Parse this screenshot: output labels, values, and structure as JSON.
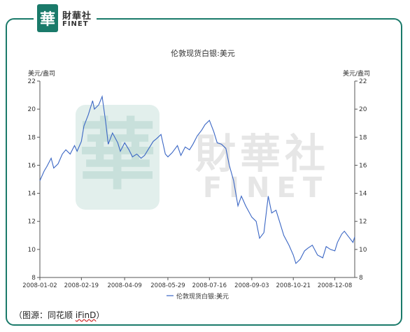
{
  "brand": {
    "logo_char": "華",
    "name_cn": "財華社",
    "name_en": "FINET"
  },
  "watermark": {
    "logo_char": "華",
    "name_cn": "財華社",
    "name_en": "FINET"
  },
  "source": {
    "prefix": "（图源：同花顺 ",
    "highlight": "iFinD",
    "suffix": "）"
  },
  "colors": {
    "line": "#3a66c4",
    "frame": "#1a7a6a",
    "watermark": "#cfe6e2"
  },
  "chart_data": {
    "type": "line",
    "title": "伦敦现货白银:美元",
    "ylabel_left": "美元/盎司",
    "ylabel_right": "美元/盎司",
    "ylim": [
      8,
      22
    ],
    "yticks": [
      8,
      10,
      12,
      14,
      16,
      18,
      20,
      22
    ],
    "xlim": [
      "2008-01-02",
      "2008-12-31"
    ],
    "xtick_labels": [
      "2008-01-02",
      "2008-02-19",
      "2008-04-09",
      "2008-05-29",
      "2008-07-16",
      "2008-09-03",
      "2008-10-21",
      "2008-12-08"
    ],
    "legend": "伦敦现货白银:美元",
    "legend_position": "bottom",
    "series": [
      {
        "name": "伦敦现货白银:美元",
        "x": [
          "2008-01-02",
          "2008-01-07",
          "2008-01-10",
          "2008-01-15",
          "2008-01-18",
          "2008-01-23",
          "2008-01-28",
          "2008-02-01",
          "2008-02-06",
          "2008-02-11",
          "2008-02-14",
          "2008-02-19",
          "2008-02-22",
          "2008-02-27",
          "2008-03-03",
          "2008-03-05",
          "2008-03-10",
          "2008-03-14",
          "2008-03-18",
          "2008-03-21",
          "2008-03-26",
          "2008-04-01",
          "2008-04-04",
          "2008-04-09",
          "2008-04-14",
          "2008-04-18",
          "2008-04-23",
          "2008-04-28",
          "2008-05-02",
          "2008-05-07",
          "2008-05-12",
          "2008-05-16",
          "2008-05-21",
          "2008-05-26",
          "2008-05-29",
          "2008-06-03",
          "2008-06-09",
          "2008-06-13",
          "2008-06-18",
          "2008-06-23",
          "2008-06-27",
          "2008-07-02",
          "2008-07-07",
          "2008-07-11",
          "2008-07-16",
          "2008-07-21",
          "2008-07-25",
          "2008-07-30",
          "2008-08-04",
          "2008-08-08",
          "2008-08-13",
          "2008-08-18",
          "2008-08-22",
          "2008-08-27",
          "2008-09-03",
          "2008-09-08",
          "2008-09-12",
          "2008-09-17",
          "2008-09-22",
          "2008-09-26",
          "2008-10-01",
          "2008-10-06",
          "2008-10-10",
          "2008-10-16",
          "2008-10-21",
          "2008-10-24",
          "2008-10-29",
          "2008-11-03",
          "2008-11-07",
          "2008-11-12",
          "2008-11-18",
          "2008-11-24",
          "2008-11-28",
          "2008-12-03",
          "2008-12-08",
          "2008-12-11",
          "2008-12-16",
          "2008-12-19",
          "2008-12-24",
          "2008-12-29",
          "2008-12-31"
        ],
        "y": [
          14.9,
          15.6,
          15.9,
          16.5,
          15.8,
          16.1,
          16.8,
          17.1,
          16.8,
          17.4,
          17.0,
          17.7,
          18.8,
          19.6,
          20.6,
          20.0,
          20.3,
          20.9,
          19.1,
          17.5,
          18.3,
          17.6,
          17.0,
          17.6,
          17.1,
          16.6,
          16.8,
          16.5,
          16.7,
          17.2,
          17.7,
          17.9,
          18.2,
          16.8,
          16.6,
          16.9,
          17.4,
          16.7,
          17.3,
          17.1,
          17.5,
          18.1,
          18.5,
          18.9,
          19.2,
          18.4,
          17.6,
          17.5,
          17.2,
          16.0,
          14.9,
          13.1,
          13.8,
          13.1,
          12.3,
          12.0,
          10.8,
          11.2,
          13.8,
          12.6,
          12.8,
          11.8,
          11.0,
          10.3,
          9.6,
          9.0,
          9.3,
          9.9,
          10.1,
          10.3,
          9.6,
          9.4,
          10.2,
          10.0,
          9.9,
          10.5,
          11.1,
          11.3,
          10.9,
          10.5,
          10.9
        ]
      }
    ]
  }
}
